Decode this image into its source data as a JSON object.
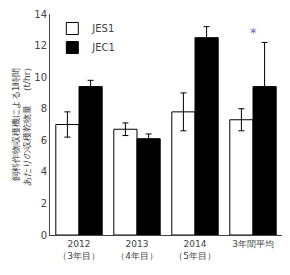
{
  "chart_data": {
    "type": "bar",
    "categories": [
      "2012\n（3年目）",
      "2013\n（4年目）",
      "2014\n（5年目）",
      "3年間平均"
    ],
    "series": [
      {
        "name": "JES1",
        "color": "#ffffff",
        "values": [
          7.0,
          6.7,
          7.8,
          7.3
        ],
        "errors": [
          0.8,
          0.4,
          1.2,
          0.7
        ]
      },
      {
        "name": "JEC1",
        "color": "#000000",
        "values": [
          9.4,
          6.1,
          12.5,
          9.4
        ],
        "errors": [
          0.4,
          0.3,
          0.7,
          2.8
        ]
      }
    ],
    "ylabel": "飼料作物収穫機による1時間\nあたりの収穫乾物量　（t/hr）",
    "annotations": [
      {
        "text": "*",
        "x": "3年間平均",
        "y": 12.2,
        "color": "#6666bb"
      }
    ],
    "ylim": [
      0,
      14
    ],
    "yticks": [
      0,
      2,
      4,
      6,
      8,
      10,
      12,
      14
    ],
    "grid": false,
    "legend": "upper left"
  }
}
